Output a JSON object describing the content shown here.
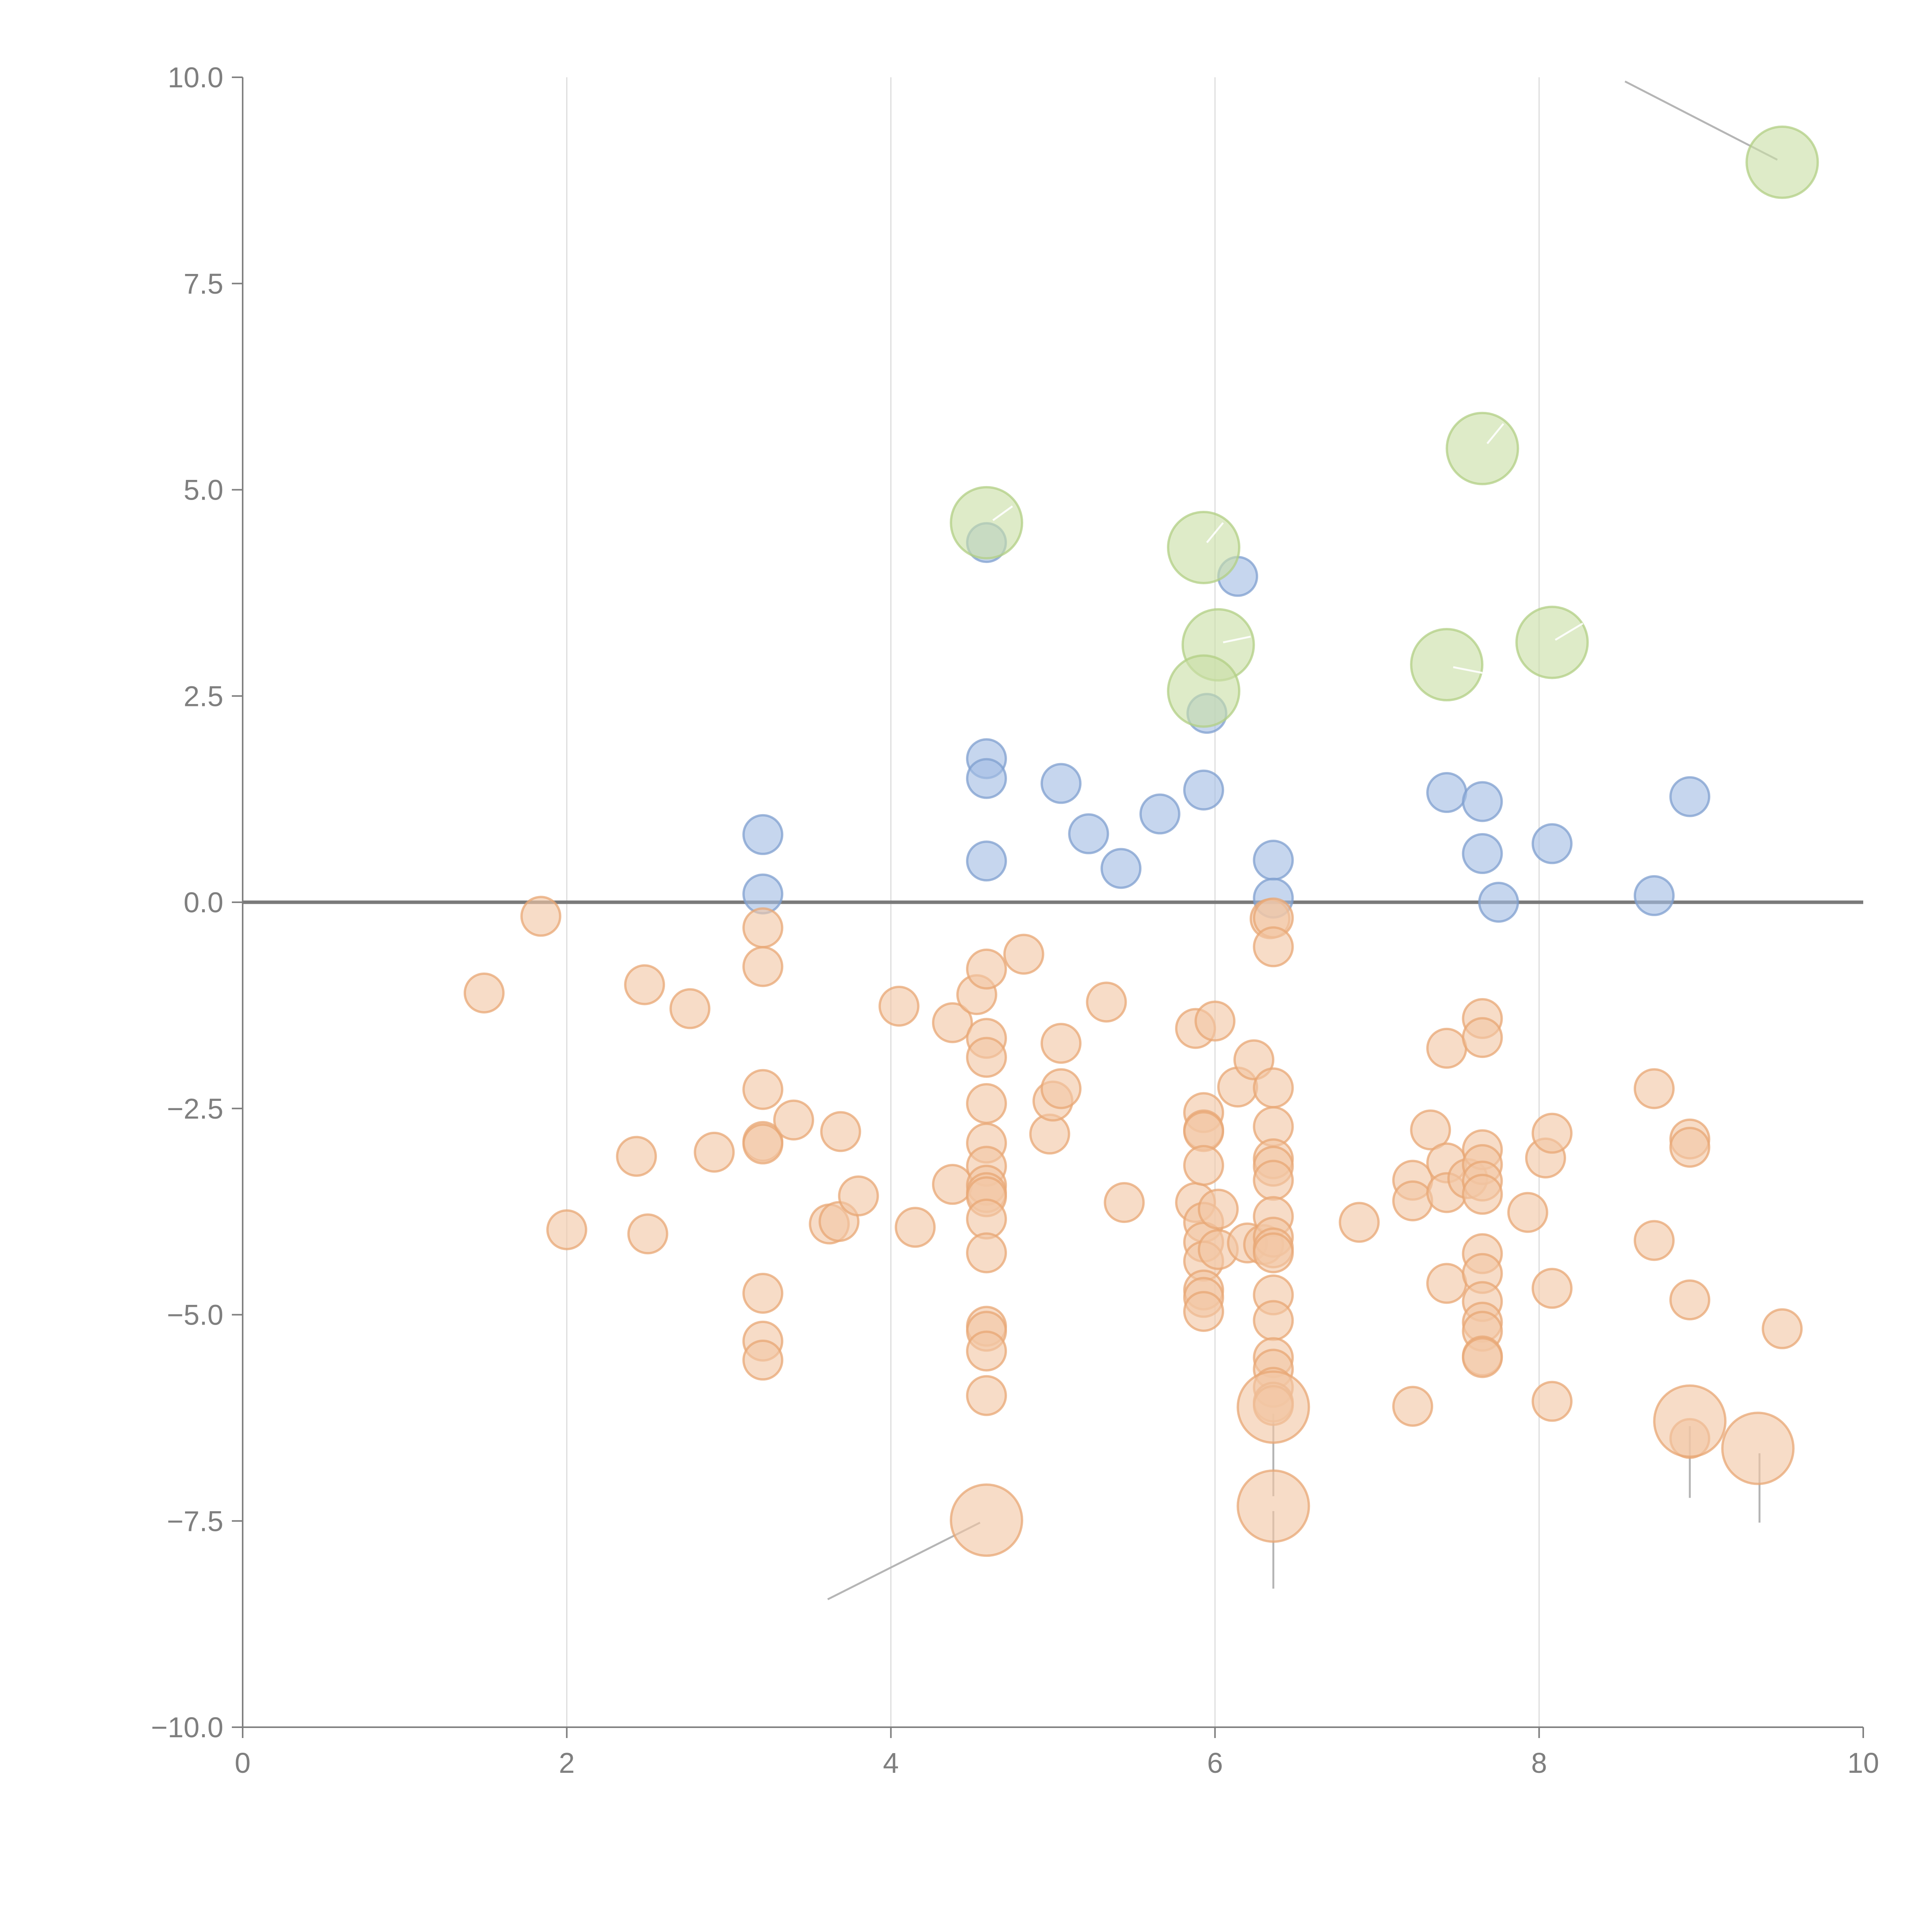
{
  "chart_data": {
    "type": "scatter",
    "title": "",
    "xlabel": "",
    "ylabel": "",
    "xlim": [
      0,
      10
    ],
    "ylim": [
      -10,
      10
    ],
    "x_ticks": [
      0,
      2,
      4,
      6,
      8,
      10
    ],
    "x_tick_labels": [
      "0",
      "2",
      "4",
      "6",
      "8",
      "10"
    ],
    "y_ticks": [
      10,
      7.5,
      5,
      2.5,
      0,
      -2.5,
      -5,
      -7.5,
      -10
    ],
    "y_tick_labels": [
      "10.0",
      "7.5",
      "5.0",
      "2.5",
      "0.0",
      "−2.5",
      "−5.0",
      "−7.5",
      "−10.0"
    ],
    "vertical_grid": true,
    "horizontal_grid": false,
    "reference_line_y": 0,
    "legend": "none",
    "series": [
      {
        "color": "#a3bde3",
        "stroke": "#7f9fcf",
        "points": [
          [
            3.21,
            0.82
          ],
          [
            3.21,
            0.1
          ],
          [
            4.59,
            1.74
          ],
          [
            4.59,
            1.5
          ],
          [
            4.59,
            0.5
          ],
          [
            5.05,
            1.44
          ],
          [
            5.22,
            0.83
          ],
          [
            5.42,
            0.41
          ],
          [
            5.66,
            1.07
          ],
          [
            5.93,
            1.36
          ],
          [
            5.95,
            2.29
          ],
          [
            6.14,
            3.95
          ],
          [
            6.36,
            0.51
          ],
          [
            6.36,
            0.05
          ],
          [
            7.43,
            1.33
          ],
          [
            7.65,
            1.22
          ],
          [
            7.65,
            0.59
          ],
          [
            7.75,
            0.0
          ],
          [
            8.08,
            0.71
          ],
          [
            8.71,
            0.08
          ],
          [
            8.93,
            1.28
          ],
          [
            4.59,
            4.36
          ]
        ],
        "size": "small"
      },
      {
        "color": "#f2c7a4",
        "stroke": "#e8a774",
        "points": [
          [
            1.49,
            -1.1
          ],
          [
            1.84,
            -0.17
          ],
          [
            2.0,
            -3.97
          ],
          [
            2.43,
            -3.08
          ],
          [
            2.48,
            -1.0
          ],
          [
            2.5,
            -4.02
          ],
          [
            2.76,
            -1.29
          ],
          [
            2.91,
            -3.03
          ],
          [
            3.21,
            -0.31
          ],
          [
            3.21,
            -0.78
          ],
          [
            3.21,
            -2.27
          ],
          [
            3.21,
            -2.9
          ],
          [
            3.21,
            -2.93
          ],
          [
            3.21,
            -4.74
          ],
          [
            3.21,
            -5.32
          ],
          [
            3.21,
            -5.55
          ],
          [
            3.4,
            -2.64
          ],
          [
            3.62,
            -3.9
          ],
          [
            3.68,
            -3.87
          ],
          [
            3.69,
            -2.78
          ],
          [
            3.8,
            -3.56
          ],
          [
            4.05,
            -1.26
          ],
          [
            4.15,
            -3.94
          ],
          [
            4.38,
            -1.46
          ],
          [
            4.38,
            -3.42
          ],
          [
            4.53,
            -1.12
          ],
          [
            4.59,
            -0.81
          ],
          [
            4.59,
            -1.65
          ],
          [
            4.59,
            -1.88
          ],
          [
            4.59,
            -2.44
          ],
          [
            4.59,
            -2.92
          ],
          [
            4.59,
            -3.2
          ],
          [
            4.59,
            -3.43
          ],
          [
            4.59,
            -3.52
          ],
          [
            4.59,
            -3.57
          ],
          [
            4.59,
            -3.84
          ],
          [
            4.59,
            -4.25
          ],
          [
            4.59,
            -5.14
          ],
          [
            4.59,
            -5.2
          ],
          [
            4.59,
            -5.44
          ],
          [
            4.59,
            -5.98
          ],
          [
            4.82,
            -0.63
          ],
          [
            4.98,
            -2.81
          ],
          [
            5.0,
            -2.41
          ],
          [
            5.05,
            -2.26
          ],
          [
            5.05,
            -1.71
          ],
          [
            5.33,
            -1.21
          ],
          [
            5.44,
            -3.64
          ],
          [
            5.88,
            -1.53
          ],
          [
            5.88,
            -3.64
          ],
          [
            5.93,
            -2.55
          ],
          [
            5.93,
            -2.76
          ],
          [
            5.93,
            -2.78
          ],
          [
            5.93,
            -3.19
          ],
          [
            5.93,
            -3.88
          ],
          [
            5.93,
            -4.12
          ],
          [
            5.93,
            -4.35
          ],
          [
            5.93,
            -4.7
          ],
          [
            5.93,
            -4.79
          ],
          [
            5.93,
            -4.96
          ],
          [
            6.0,
            -1.44
          ],
          [
            6.02,
            -3.72
          ],
          [
            6.02,
            -4.21
          ],
          [
            6.14,
            -2.24
          ],
          [
            6.2,
            -4.13
          ],
          [
            6.24,
            -1.91
          ],
          [
            6.3,
            -4.15
          ],
          [
            6.34,
            -0.2
          ],
          [
            6.36,
            -0.19
          ],
          [
            6.36,
            -0.54
          ],
          [
            6.36,
            -2.25
          ],
          [
            6.36,
            -2.72
          ],
          [
            6.36,
            -3.11
          ],
          [
            6.36,
            -3.2
          ],
          [
            6.36,
            -3.37
          ],
          [
            6.36,
            -3.81
          ],
          [
            6.36,
            -4.06
          ],
          [
            6.36,
            -4.19
          ],
          [
            6.36,
            -4.25
          ],
          [
            6.36,
            -4.76
          ],
          [
            6.36,
            -5.07
          ],
          [
            6.36,
            -5.52
          ],
          [
            6.36,
            -5.66
          ],
          [
            6.36,
            -5.88
          ],
          [
            6.36,
            -6.06
          ],
          [
            6.36,
            -6.1
          ],
          [
            6.89,
            -3.88
          ],
          [
            7.22,
            -3.37
          ],
          [
            7.22,
            -3.62
          ],
          [
            7.22,
            -6.11
          ],
          [
            7.33,
            -2.76
          ],
          [
            7.43,
            -1.77
          ],
          [
            7.43,
            -3.16
          ],
          [
            7.43,
            -3.52
          ],
          [
            7.43,
            -4.62
          ],
          [
            7.56,
            -3.35
          ],
          [
            7.65,
            -1.41
          ],
          [
            7.65,
            -1.64
          ],
          [
            7.65,
            -3.0
          ],
          [
            7.65,
            -3.18
          ],
          [
            7.65,
            -3.38
          ],
          [
            7.65,
            -3.54
          ],
          [
            7.65,
            -4.26
          ],
          [
            7.65,
            -4.5
          ],
          [
            7.65,
            -4.84
          ],
          [
            7.65,
            -5.09
          ],
          [
            7.65,
            -5.2
          ],
          [
            7.65,
            -5.5
          ],
          [
            7.65,
            -5.52
          ],
          [
            7.93,
            -3.76
          ],
          [
            8.04,
            -3.1
          ],
          [
            8.08,
            -2.8
          ],
          [
            8.08,
            -4.68
          ],
          [
            8.08,
            -6.05
          ],
          [
            8.71,
            -2.26
          ],
          [
            8.71,
            -4.1
          ],
          [
            8.93,
            -2.87
          ],
          [
            8.93,
            -2.97
          ],
          [
            8.93,
            -4.82
          ],
          [
            8.93,
            -6.5
          ],
          [
            9.5,
            -5.17
          ]
        ],
        "size": "small"
      },
      {
        "color": "#c9dea6",
        "stroke": "#b2cf84",
        "points": [
          [
            4.59,
            4.6
          ],
          [
            5.93,
            4.3
          ],
          [
            6.02,
            3.12
          ],
          [
            5.93,
            2.56
          ],
          [
            7.43,
            2.88
          ],
          [
            7.65,
            5.5
          ],
          [
            8.08,
            3.15
          ],
          [
            9.5,
            8.97
          ]
        ],
        "size": "large"
      },
      {
        "color": "#f2c7a4",
        "stroke": "#e8a774",
        "points": [
          [
            4.59,
            -7.49
          ],
          [
            6.36,
            -6.12
          ],
          [
            6.36,
            -7.32
          ],
          [
            8.93,
            -6.29
          ],
          [
            9.35,
            -6.62
          ]
        ],
        "size": "large"
      }
    ],
    "annotations": [
      {
        "from": [
          8.53,
          9.95
        ],
        "to": [
          9.47,
          9.0
        ],
        "color": "#b5b5b5"
      },
      {
        "from": [
          3.61,
          -8.45
        ],
        "to": [
          4.55,
          -7.52
        ],
        "color": "#b5b5b5"
      },
      {
        "from": [
          6.36,
          -8.32
        ],
        "to": [
          6.36,
          -7.38
        ],
        "color": "#b5b5b5"
      },
      {
        "from": [
          6.36,
          -7.2
        ],
        "to": [
          6.36,
          -6.2
        ],
        "color": "#b5b5b5"
      },
      {
        "from": [
          8.93,
          -7.22
        ],
        "to": [
          8.93,
          -6.35
        ],
        "color": "#b5b5b5"
      },
      {
        "from": [
          9.36,
          -7.52
        ],
        "to": [
          9.36,
          -6.68
        ],
        "color": "#b5b5b5"
      },
      {
        "from": [
          4.63,
          4.63
        ],
        "to": [
          4.75,
          4.8
        ],
        "color": "#ffffff"
      },
      {
        "from": [
          5.95,
          4.36
        ],
        "to": [
          6.05,
          4.6
        ],
        "color": "#ffffff"
      },
      {
        "from": [
          6.05,
          3.15
        ],
        "to": [
          6.22,
          3.22
        ],
        "color": "#ffffff"
      },
      {
        "from": [
          7.47,
          2.85
        ],
        "to": [
          7.65,
          2.78
        ],
        "color": "#ffffff"
      },
      {
        "from": [
          7.68,
          5.56
        ],
        "to": [
          7.78,
          5.8
        ],
        "color": "#ffffff"
      },
      {
        "from": [
          8.1,
          3.18
        ],
        "to": [
          8.27,
          3.38
        ],
        "color": "#ffffff"
      }
    ]
  }
}
